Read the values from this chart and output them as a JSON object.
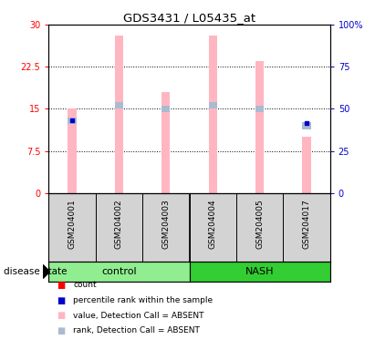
{
  "title": "GDS3431 / L05435_at",
  "samples": [
    "GSM204001",
    "GSM204002",
    "GSM204003",
    "GSM204004",
    "GSM204005",
    "GSM204017"
  ],
  "groups": [
    "control",
    "control",
    "control",
    "NASH",
    "NASH",
    "NASH"
  ],
  "group_labels": [
    "control",
    "NASH"
  ],
  "group_colors": [
    "#90EE90",
    "#32CD32"
  ],
  "ylim_left": [
    0,
    30
  ],
  "ylim_right": [
    0,
    100
  ],
  "yticks_left": [
    0,
    7.5,
    15,
    22.5,
    30
  ],
  "yticks_right": [
    0,
    25,
    50,
    75,
    100
  ],
  "bar_values_absent": [
    15.0,
    28.0,
    18.0,
    28.0,
    23.5,
    10.0
  ],
  "rank_values_absent": [
    43.0,
    52.0,
    50.0,
    52.0,
    50.0,
    40.0
  ],
  "percentile_rank": [
    13.0,
    null,
    null,
    null,
    null,
    12.5
  ],
  "bar_color_absent": "#FFB6C1",
  "rank_color_absent": "#AABBD0",
  "count_color": "#FF0000",
  "percentile_color": "#0000CD",
  "background_color": "#FFFFFF",
  "tick_label_color_left": "#FF0000",
  "tick_label_color_right": "#0000CD"
}
